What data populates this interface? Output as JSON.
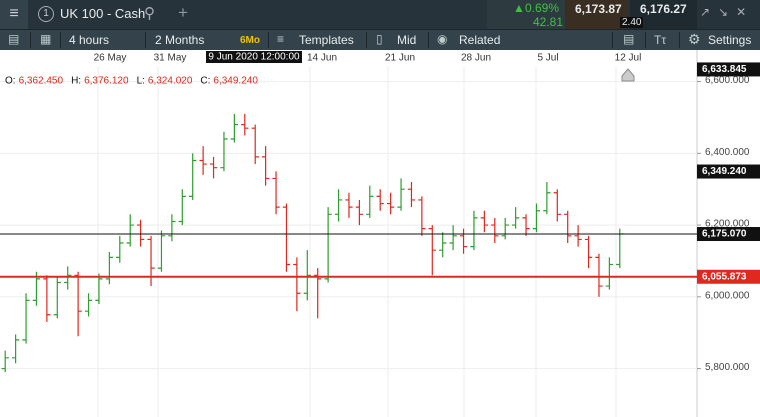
{
  "header": {
    "instrument": "UK 100 - Cash",
    "change_pct": "0.69%",
    "change_pts": "42.81",
    "sell": "6,173.87",
    "buy": "6,176.27",
    "spread": "2.40"
  },
  "toolbar": {
    "interval": "4 hours",
    "range": "2 Months",
    "range_short": "6Mo",
    "templates": "Templates",
    "price_type": "Mid",
    "related": "Related",
    "settings": "Settings"
  },
  "chart_data": {
    "type": "ohlc",
    "legend": {
      "o_label": "O:",
      "o": "6,362.450",
      "h_label": "H:",
      "h": "6,376.120",
      "l_label": "L:",
      "l": "6,324.020",
      "c_label": "C:",
      "c": "6,349.240"
    },
    "crosshair_label": "9 Jun 2020 12:00:00",
    "date_labels": [
      "26 May",
      "31 May",
      "14 Jun",
      "21 Jun",
      "28 Jun",
      "5 Jul",
      "12 Jul"
    ],
    "up_color": "#2e9e2e",
    "down_color": "#e0281e",
    "ylim": [
      5665,
      6688
    ],
    "yticks": [
      {
        "value": 5800,
        "label": "5,800.000"
      },
      {
        "value": 6000,
        "label": "6,000.000"
      },
      {
        "value": 6200,
        "label": "6,200.000"
      },
      {
        "value": 6400,
        "label": "6,400.000"
      },
      {
        "value": 6600,
        "label": "6,600.000"
      }
    ],
    "grid": true,
    "markers": [
      {
        "value": 6633.845,
        "label": "6,633.845",
        "color": "#111111",
        "line": false
      },
      {
        "value": 6349.24,
        "label": "6,349.240",
        "color": "#111111",
        "line": false
      },
      {
        "value": 6175.07,
        "label": "6,175.070",
        "color": "#111111",
        "line": true
      },
      {
        "value": 6055.873,
        "label": "6,055.873",
        "color": "#e0281e",
        "line": true
      }
    ],
    "ohlc": [
      [
        5800,
        5850,
        5790,
        5830
      ],
      [
        5830,
        5895,
        5815,
        5880
      ],
      [
        5880,
        6010,
        5870,
        5990
      ],
      [
        5990,
        6070,
        5975,
        6050
      ],
      [
        6050,
        6060,
        5930,
        5950
      ],
      [
        5950,
        6055,
        5940,
        6040
      ],
      [
        6040,
        6085,
        6020,
        6060
      ],
      [
        6060,
        6070,
        5890,
        5960
      ],
      [
        5960,
        6010,
        5945,
        5990
      ],
      [
        5990,
        6065,
        5980,
        6050
      ],
      [
        6050,
        6125,
        6035,
        6110
      ],
      [
        6110,
        6170,
        6095,
        6150
      ],
      [
        6150,
        6230,
        6140,
        6200
      ],
      [
        6200,
        6215,
        6140,
        6160
      ],
      [
        6160,
        6170,
        6030,
        6080
      ],
      [
        6080,
        6185,
        6070,
        6170
      ],
      [
        6170,
        6230,
        6155,
        6210
      ],
      [
        6210,
        6300,
        6200,
        6280
      ],
      [
        6280,
        6400,
        6270,
        6380
      ],
      [
        6380,
        6420,
        6340,
        6370
      ],
      [
        6370,
        6390,
        6330,
        6360
      ],
      [
        6360,
        6460,
        6350,
        6440
      ],
      [
        6440,
        6510,
        6430,
        6480
      ],
      [
        6480,
        6510,
        6450,
        6470
      ],
      [
        6470,
        6480,
        6370,
        6390
      ],
      [
        6390,
        6420,
        6310,
        6330
      ],
      [
        6330,
        6350,
        6230,
        6250
      ],
      [
        6250,
        6260,
        6070,
        6090
      ],
      [
        6090,
        6110,
        5960,
        6010
      ],
      [
        6010,
        6130,
        5990,
        6060
      ],
      [
        6060,
        6080,
        5940,
        6050
      ],
      [
        6050,
        6250,
        6040,
        6230
      ],
      [
        6230,
        6300,
        6210,
        6270
      ],
      [
        6270,
        6290,
        6220,
        6250
      ],
      [
        6250,
        6270,
        6200,
        6230
      ],
      [
        6230,
        6310,
        6220,
        6280
      ],
      [
        6280,
        6300,
        6240,
        6260
      ],
      [
        6260,
        6290,
        6230,
        6250
      ],
      [
        6250,
        6330,
        6240,
        6300
      ],
      [
        6300,
        6320,
        6250,
        6270
      ],
      [
        6270,
        6280,
        6170,
        6190
      ],
      [
        6190,
        6200,
        6060,
        6130
      ],
      [
        6130,
        6180,
        6110,
        6150
      ],
      [
        6150,
        6200,
        6130,
        6170
      ],
      [
        6170,
        6190,
        6120,
        6140
      ],
      [
        6140,
        6240,
        6130,
        6220
      ],
      [
        6220,
        6240,
        6180,
        6200
      ],
      [
        6200,
        6220,
        6150,
        6170
      ],
      [
        6170,
        6220,
        6160,
        6200
      ],
      [
        6200,
        6250,
        6190,
        6220
      ],
      [
        6220,
        6230,
        6170,
        6190
      ],
      [
        6190,
        6260,
        6180,
        6240
      ],
      [
        6240,
        6320,
        6230,
        6290
      ],
      [
        6290,
        6300,
        6210,
        6230
      ],
      [
        6230,
        6240,
        6150,
        6170
      ],
      [
        6170,
        6200,
        6140,
        6160
      ],
      [
        6160,
        6170,
        6080,
        6110
      ],
      [
        6110,
        6120,
        6000,
        6030
      ],
      [
        6030,
        6110,
        6020,
        6090
      ],
      [
        6090,
        6190,
        6080,
        6175.07
      ]
    ]
  }
}
